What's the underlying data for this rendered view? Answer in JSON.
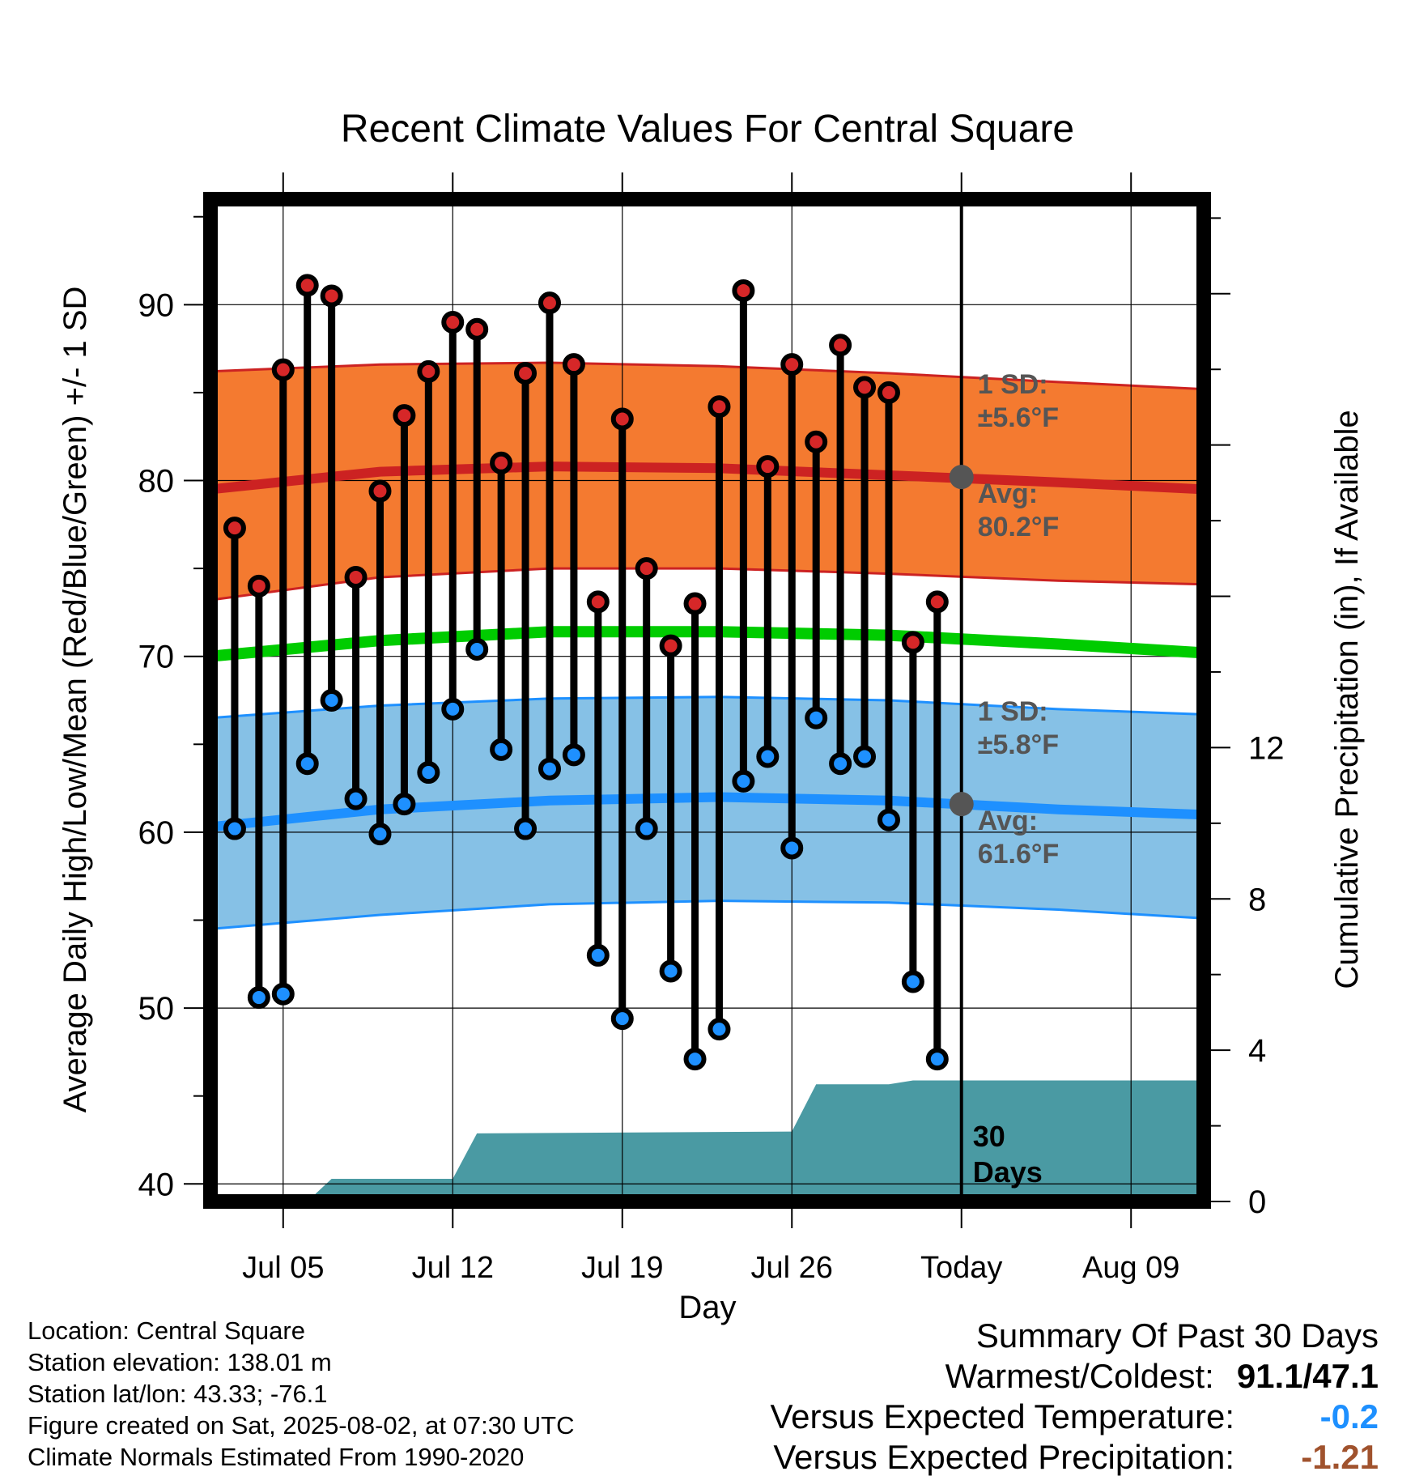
{
  "chart_data": {
    "type": "line",
    "title": "Recent Climate Values For Central Square",
    "xlabel": "Day",
    "ylabel": "Average Daily High/Low/Mean (Red/Blue/Green) +/- 1 SD",
    "y2label": "Cumulative Precipitation (in), If Available",
    "x_tick_labels": [
      "Jul 05",
      "Jul 12",
      "Jul 19",
      "Jul 26",
      "Today",
      "Aug 09"
    ],
    "x_tick_dates": [
      "2025-07-05",
      "2025-07-12",
      "2025-07-19",
      "2025-07-26",
      "2025-08-02",
      "2025-08-09"
    ],
    "xlim": [
      "2025-07-02",
      "2025-08-12"
    ],
    "ylim": [
      39,
      96
    ],
    "y_ticks": [
      40,
      50,
      60,
      70,
      80,
      90
    ],
    "y2lim": [
      0,
      26.5
    ],
    "y2_ticks": [
      0,
      4,
      8,
      12
    ],
    "grid": true,
    "today": "2025-08-02",
    "normals": {
      "dates": [
        "2025-07-02",
        "2025-07-09",
        "2025-07-16",
        "2025-07-23",
        "2025-07-30",
        "2025-08-06",
        "2025-08-12"
      ],
      "high_avg": [
        79.5,
        80.5,
        80.8,
        80.7,
        80.3,
        79.9,
        79.5
      ],
      "high_upper": [
        86.2,
        86.6,
        86.7,
        86.5,
        86.1,
        85.6,
        85.2
      ],
      "high_lower": [
        73.2,
        74.5,
        75.0,
        75.0,
        74.7,
        74.3,
        74.1
      ],
      "low_avg": [
        60.3,
        61.3,
        61.8,
        62.0,
        61.8,
        61.3,
        61.0
      ],
      "low_upper": [
        66.5,
        67.2,
        67.6,
        67.7,
        67.5,
        67.0,
        66.7
      ],
      "low_lower": [
        54.5,
        55.3,
        55.9,
        56.1,
        56.0,
        55.6,
        55.1
      ],
      "mean_avg": [
        70.0,
        70.9,
        71.4,
        71.4,
        71.2,
        70.7,
        70.2
      ]
    },
    "series": [
      {
        "name": "High",
        "color": "#d62728",
        "values": [
          77.3,
          74.0,
          86.3,
          91.1,
          90.5,
          74.5,
          79.4,
          83.7,
          86.2,
          89.0,
          88.6,
          81.0,
          86.1,
          90.1,
          86.6,
          73.1,
          83.5,
          75.0,
          70.6,
          73.0,
          84.2,
          90.8,
          80.8,
          86.6,
          82.2,
          87.7,
          85.3,
          85.0,
          70.8,
          73.1
        ]
      },
      {
        "name": "Low",
        "color": "#1e90ff",
        "values": [
          60.2,
          50.6,
          50.8,
          63.9,
          67.5,
          61.9,
          59.9,
          61.6,
          63.4,
          67.0,
          70.4,
          64.7,
          60.2,
          63.6,
          64.4,
          53.0,
          49.4,
          60.2,
          52.1,
          47.1,
          48.8,
          62.9,
          64.3,
          59.1,
          66.5,
          63.9,
          64.3,
          60.7,
          51.5,
          47.1
        ]
      }
    ],
    "obs_dates": [
      "2025-07-03",
      "2025-07-04",
      "2025-07-05",
      "2025-07-06",
      "2025-07-07",
      "2025-07-08",
      "2025-07-09",
      "2025-07-10",
      "2025-07-11",
      "2025-07-12",
      "2025-07-13",
      "2025-07-14",
      "2025-07-15",
      "2025-07-16",
      "2025-07-17",
      "2025-07-18",
      "2025-07-19",
      "2025-07-20",
      "2025-07-21",
      "2025-07-22",
      "2025-07-23",
      "2025-07-24",
      "2025-07-25",
      "2025-07-26",
      "2025-07-27",
      "2025-07-28",
      "2025-07-29",
      "2025-07-30",
      "2025-07-31",
      "2025-08-01"
    ],
    "precip": {
      "dates": [
        "2025-07-02",
        "2025-07-06",
        "2025-07-07",
        "2025-07-12",
        "2025-07-13",
        "2025-07-26",
        "2025-07-27",
        "2025-07-30",
        "2025-07-31",
        "2025-08-12"
      ],
      "cumulative": [
        0,
        0,
        0.6,
        0.6,
        1.8,
        1.85,
        3.1,
        3.1,
        3.2,
        3.2
      ]
    },
    "annotations": {
      "high_sd": "1 SD:",
      "high_sd_value": "±5.6°F",
      "high_avg_label": "Avg:",
      "high_avg_value": "80.2°F",
      "low_sd": "1 SD:",
      "low_sd_value": "±5.8°F",
      "low_avg_label": "Avg:",
      "low_avg_value": "61.6°F",
      "today_high_avg": 80.2,
      "today_low_avg": 61.6,
      "window_line1": "30",
      "window_line2": "Days"
    },
    "colors": {
      "high_band": "#f47a30",
      "high_line": "#cc2222",
      "low_band": "#86c1e6",
      "low_line": "#1e90ff",
      "mean_line": "#00cc00",
      "precip": "#4a9aa3",
      "marker_high": "#d62728",
      "marker_low": "#1e90ff",
      "annotation": "#555555"
    }
  },
  "info": {
    "location": "Location: Central Square",
    "elevation": "Station elevation: 138.01 m",
    "latlon": "Station lat/lon: 43.33; -76.1",
    "created": "Figure created on Sat, 2025-08-02, at 07:30 UTC",
    "normals": "Climate Normals Estimated From 1990-2020"
  },
  "summary": {
    "title": "Summary Of Past 30 Days",
    "warm_cold_label": "Warmest/Coldest:",
    "warm_cold_value": "91.1/47.1",
    "temp_label": "Versus Expected Temperature:",
    "temp_value": "-0.2",
    "temp_color": "#1e90ff",
    "precip_label": "Versus Expected Precipitation:",
    "precip_value": "-1.21",
    "precip_color": "#a0522d"
  }
}
